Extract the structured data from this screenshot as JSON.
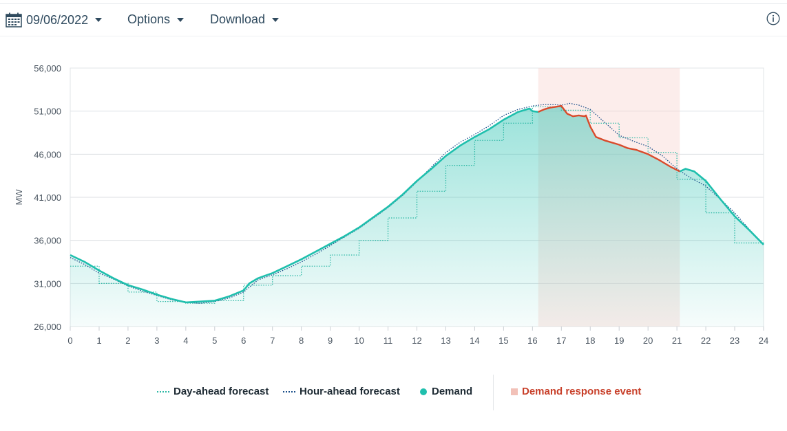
{
  "toolbar": {
    "date": "09/06/2022",
    "options_label": "Options",
    "download_label": "Download"
  },
  "chart_data": {
    "type": "line",
    "title": "",
    "xlabel": "",
    "ylabel": "MW",
    "xlim": [
      0,
      24
    ],
    "ylim": [
      26000,
      56000
    ],
    "x_ticks": [
      "0",
      "1",
      "2",
      "3",
      "4",
      "5",
      "6",
      "7",
      "8",
      "9",
      "10",
      "11",
      "12",
      "13",
      "14",
      "15",
      "16",
      "17",
      "18",
      "19",
      "20",
      "21",
      "22",
      "23",
      "24"
    ],
    "y_ticks": [
      "26,000",
      "31,000",
      "36,000",
      "41,000",
      "46,000",
      "51,000",
      "56,000"
    ],
    "grid": "horizontal",
    "legend_position": "bottom",
    "colors": {
      "demand": "#1fbfad",
      "demand_response": "#d94a2b",
      "day_ahead": "#2fb9a6",
      "hour_ahead": "#1b4f8a",
      "event_shade": "#f9d5cf"
    },
    "demand_response_event": {
      "start": 16.2,
      "end": 21.1,
      "label": "Demand response event"
    },
    "series": [
      {
        "name": "Demand",
        "style": "solid",
        "x": [
          0,
          0.5,
          1,
          1.5,
          2,
          2.5,
          3,
          3.5,
          4,
          4.5,
          5,
          5.5,
          6,
          6.2,
          6.5,
          7,
          7.5,
          8,
          8.5,
          9,
          9.5,
          10,
          10.5,
          11,
          11.5,
          12,
          12.5,
          13,
          13.5,
          14,
          14.5,
          15,
          15.5,
          15.9,
          16,
          16.2,
          16.4,
          16.6,
          16.8,
          17,
          17.2,
          17.4,
          17.6,
          17.8,
          17.85,
          18,
          18.2,
          18.5,
          18.8,
          19,
          19.3,
          19.6,
          20,
          20.4,
          20.8,
          21.1,
          21.3,
          21.6,
          22,
          22.5,
          23,
          23.5,
          24
        ],
        "y": [
          34300,
          33500,
          32500,
          31600,
          30800,
          30300,
          29700,
          29200,
          28800,
          28900,
          29000,
          29500,
          30200,
          31000,
          31600,
          32200,
          33000,
          33800,
          34700,
          35600,
          36500,
          37500,
          38700,
          39900,
          41300,
          42900,
          44300,
          45800,
          47000,
          48000,
          48900,
          50000,
          50900,
          51300,
          51000,
          50900,
          51200,
          51400,
          51500,
          51600,
          50700,
          50400,
          50500,
          50400,
          50500,
          49200,
          48000,
          47600,
          47300,
          47100,
          46700,
          46500,
          46000,
          45300,
          44500,
          44000,
          44300,
          44000,
          42900,
          40800,
          38800,
          37200,
          35500
        ]
      },
      {
        "name": "Day-ahead forecast",
        "style": "dotted-step",
        "x": [
          0,
          1,
          2,
          3,
          4,
          5,
          6,
          7,
          8,
          9,
          10,
          11,
          12,
          13,
          14,
          15,
          16,
          17,
          18,
          19,
          20,
          21,
          22,
          23,
          24
        ],
        "y": [
          33000,
          31000,
          30000,
          28900,
          28700,
          29000,
          30800,
          31900,
          33000,
          34300,
          36000,
          38600,
          41700,
          44700,
          47600,
          49600,
          51500,
          51100,
          49600,
          47900,
          46200,
          43100,
          39200,
          35700,
          35500
        ]
      },
      {
        "name": "Hour-ahead forecast",
        "style": "dotted",
        "x": [
          0,
          0.5,
          1,
          1.5,
          2,
          2.5,
          3,
          3.5,
          4,
          4.5,
          5,
          5.5,
          6,
          6.5,
          7,
          7.5,
          8,
          8.5,
          9,
          9.5,
          10,
          10.5,
          11,
          11.5,
          12,
          12.5,
          13,
          13.5,
          14,
          14.5,
          15,
          15.5,
          16,
          16.5,
          17,
          17.3,
          17.6,
          18,
          18.5,
          19,
          19.5,
          20,
          20.5,
          21,
          21.5,
          22,
          22.5,
          23,
          23.5,
          24
        ],
        "y": [
          34000,
          33200,
          32200,
          31500,
          30700,
          30100,
          29600,
          29100,
          28800,
          28700,
          28900,
          29300,
          30000,
          31400,
          32000,
          32700,
          33500,
          34400,
          35400,
          36400,
          37400,
          38600,
          39800,
          41200,
          42800,
          44500,
          46200,
          47400,
          48300,
          49300,
          50500,
          51200,
          51600,
          51800,
          51700,
          51900,
          51700,
          51200,
          49700,
          48200,
          47500,
          46900,
          45800,
          44300,
          43200,
          42300,
          40800,
          39200,
          37300,
          35500
        ]
      }
    ]
  },
  "legend": {
    "day_ahead_label": "Day-ahead forecast",
    "hour_ahead_label": "Hour-ahead forecast",
    "demand_label": "Demand",
    "event_label": "Demand response event"
  }
}
